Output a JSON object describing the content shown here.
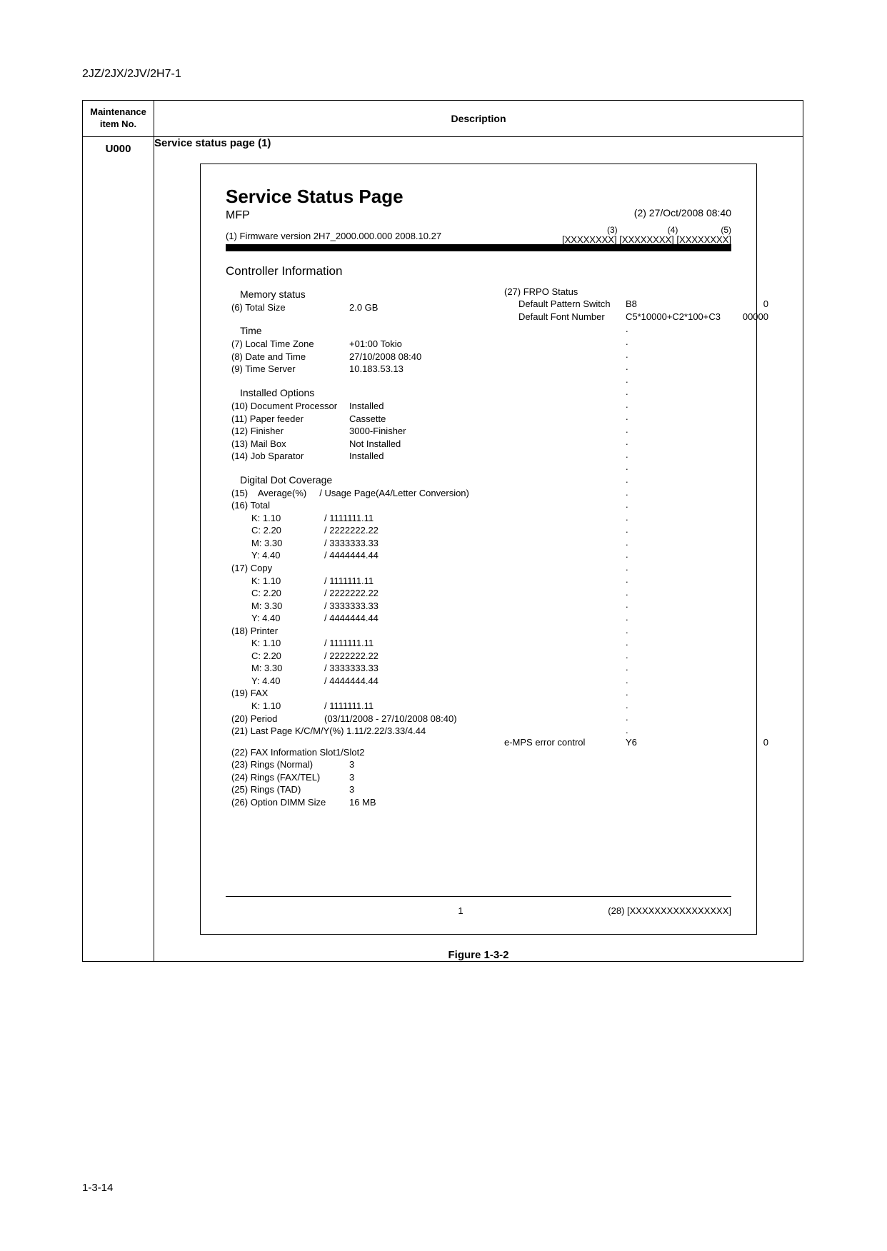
{
  "header_code": "2JZ/2JX/2JV/2H7-1",
  "table": {
    "head_left": "Maintenance\nitem No.",
    "head_right": "Description",
    "item_no": "U000",
    "desc_title": "Service status page (1)"
  },
  "svc": {
    "title": "Service Status Page",
    "mfp": "MFP",
    "date_label": "(2) 27/Oct/2008 08:40",
    "codes_labels": "(3)                     (4)                  (5)",
    "codes": "[XXXXXXXX] [XXXXXXXX] [XXXXXXXX]",
    "firmware": "(1) Firmware version 2H7_2000.000.000  2008.10.27",
    "section": "Controller Information"
  },
  "left": {
    "memory": {
      "h": "Memory status",
      "total_size_l": "(6) Total Size",
      "total_size_v": "2.0 GB"
    },
    "time": {
      "h": "Time",
      "tz_l": "(7) Local Time Zone",
      "tz_v": "+01:00 Tokio",
      "dt_l": "(8) Date and Time",
      "dt_v": "27/10/2008 08:40",
      "ts_l": "(9) Time Server",
      "ts_v": "10.183.53.13"
    },
    "opts": {
      "h": "Installed Options",
      "dp_l": "(10) Document Processor",
      "dp_v": "Installed",
      "pf_l": "(11) Paper feeder",
      "pf_v": "Cassette",
      "fn_l": "(12) Finisher",
      "fn_v": "3000-Finisher",
      "mb_l": "(13)  Mail Box",
      "mb_v": "Not Installed",
      "js_l": "(14) Job Sparator",
      "js_v": "Installed"
    },
    "ddc": {
      "h": "Digital Dot Coverage",
      "avg": "(15)    Average(%)     / Usage Page(A4/Letter Conversion)",
      "total": "(16) Total",
      "t_k_l": "K:  1.10",
      "t_k_v": "/ 1111111.11",
      "t_c_l": "C:  2.20",
      "t_c_v": "/ 2222222.22",
      "t_m_l": "M:  3.30",
      "t_m_v": "/ 3333333.33",
      "t_y_l": "Y:  4.40",
      "t_y_v": "/ 4444444.44",
      "copy": "(17) Copy",
      "c_k_l": "K:  1.10",
      "c_k_v": "/ 1111111.11",
      "c_c_l": "C:  2.20",
      "c_c_v": "/ 2222222.22",
      "c_m_l": "M:  3.30",
      "c_m_v": "/ 3333333.33",
      "c_y_l": "Y:  4.40",
      "c_y_v": "/ 4444444.44",
      "printer": "(18) Printer",
      "p_k_l": "K:  1.10",
      "p_k_v": "/ 1111111.11",
      "p_c_l": "C:  2.20",
      "p_c_v": "/ 2222222.22",
      "p_m_l": "M:  3.30",
      "p_m_v": "/ 3333333.33",
      "p_y_l": "Y:  4.40",
      "p_y_v": "/ 4444444.44",
      "fax": "(19) FAX",
      "f_k_l": "K:  1.10",
      "f_k_v": "/ 1111111.11",
      "period_l": "(20) Period",
      "period_v": "(03/11/2008 - 27/10/2008 08:40)",
      "last": "(21) Last Page K/C/M/Y(%)   1.11/2.22/3.33/4.44"
    },
    "faxinfo": {
      "h": "(22) FAX Information Slot1/Slot2",
      "rn_l": "(23) Rings (Normal)",
      "rn_v": "3",
      "rf_l": "(24) Rings (FAX/TEL)",
      "rf_v": "3",
      "rt_l": "(25) Rings (TAD)",
      "rt_v": "3",
      "od_l": "(26) Option DIMM Size",
      "od_v": "16 MB"
    }
  },
  "right": {
    "frpo_h": "(27) FRPO Status",
    "dps_l": "Default Pattern Switch",
    "dps_v": "B8",
    "dps_n": "0",
    "dfn_l": "Default Font Number",
    "dfn_v": "C5*10000+C2*100+C3",
    "dfn_n": "00000",
    "emps_l": "e-MPS error control",
    "emps_v": "Y6",
    "emps_n": "0"
  },
  "foot": {
    "pagenum": "1",
    "code28": "(28) [XXXXXXXXXXXXXXXX]"
  },
  "figure": "Figure 1-3-2",
  "bottom_pagenum": "1-3-14"
}
